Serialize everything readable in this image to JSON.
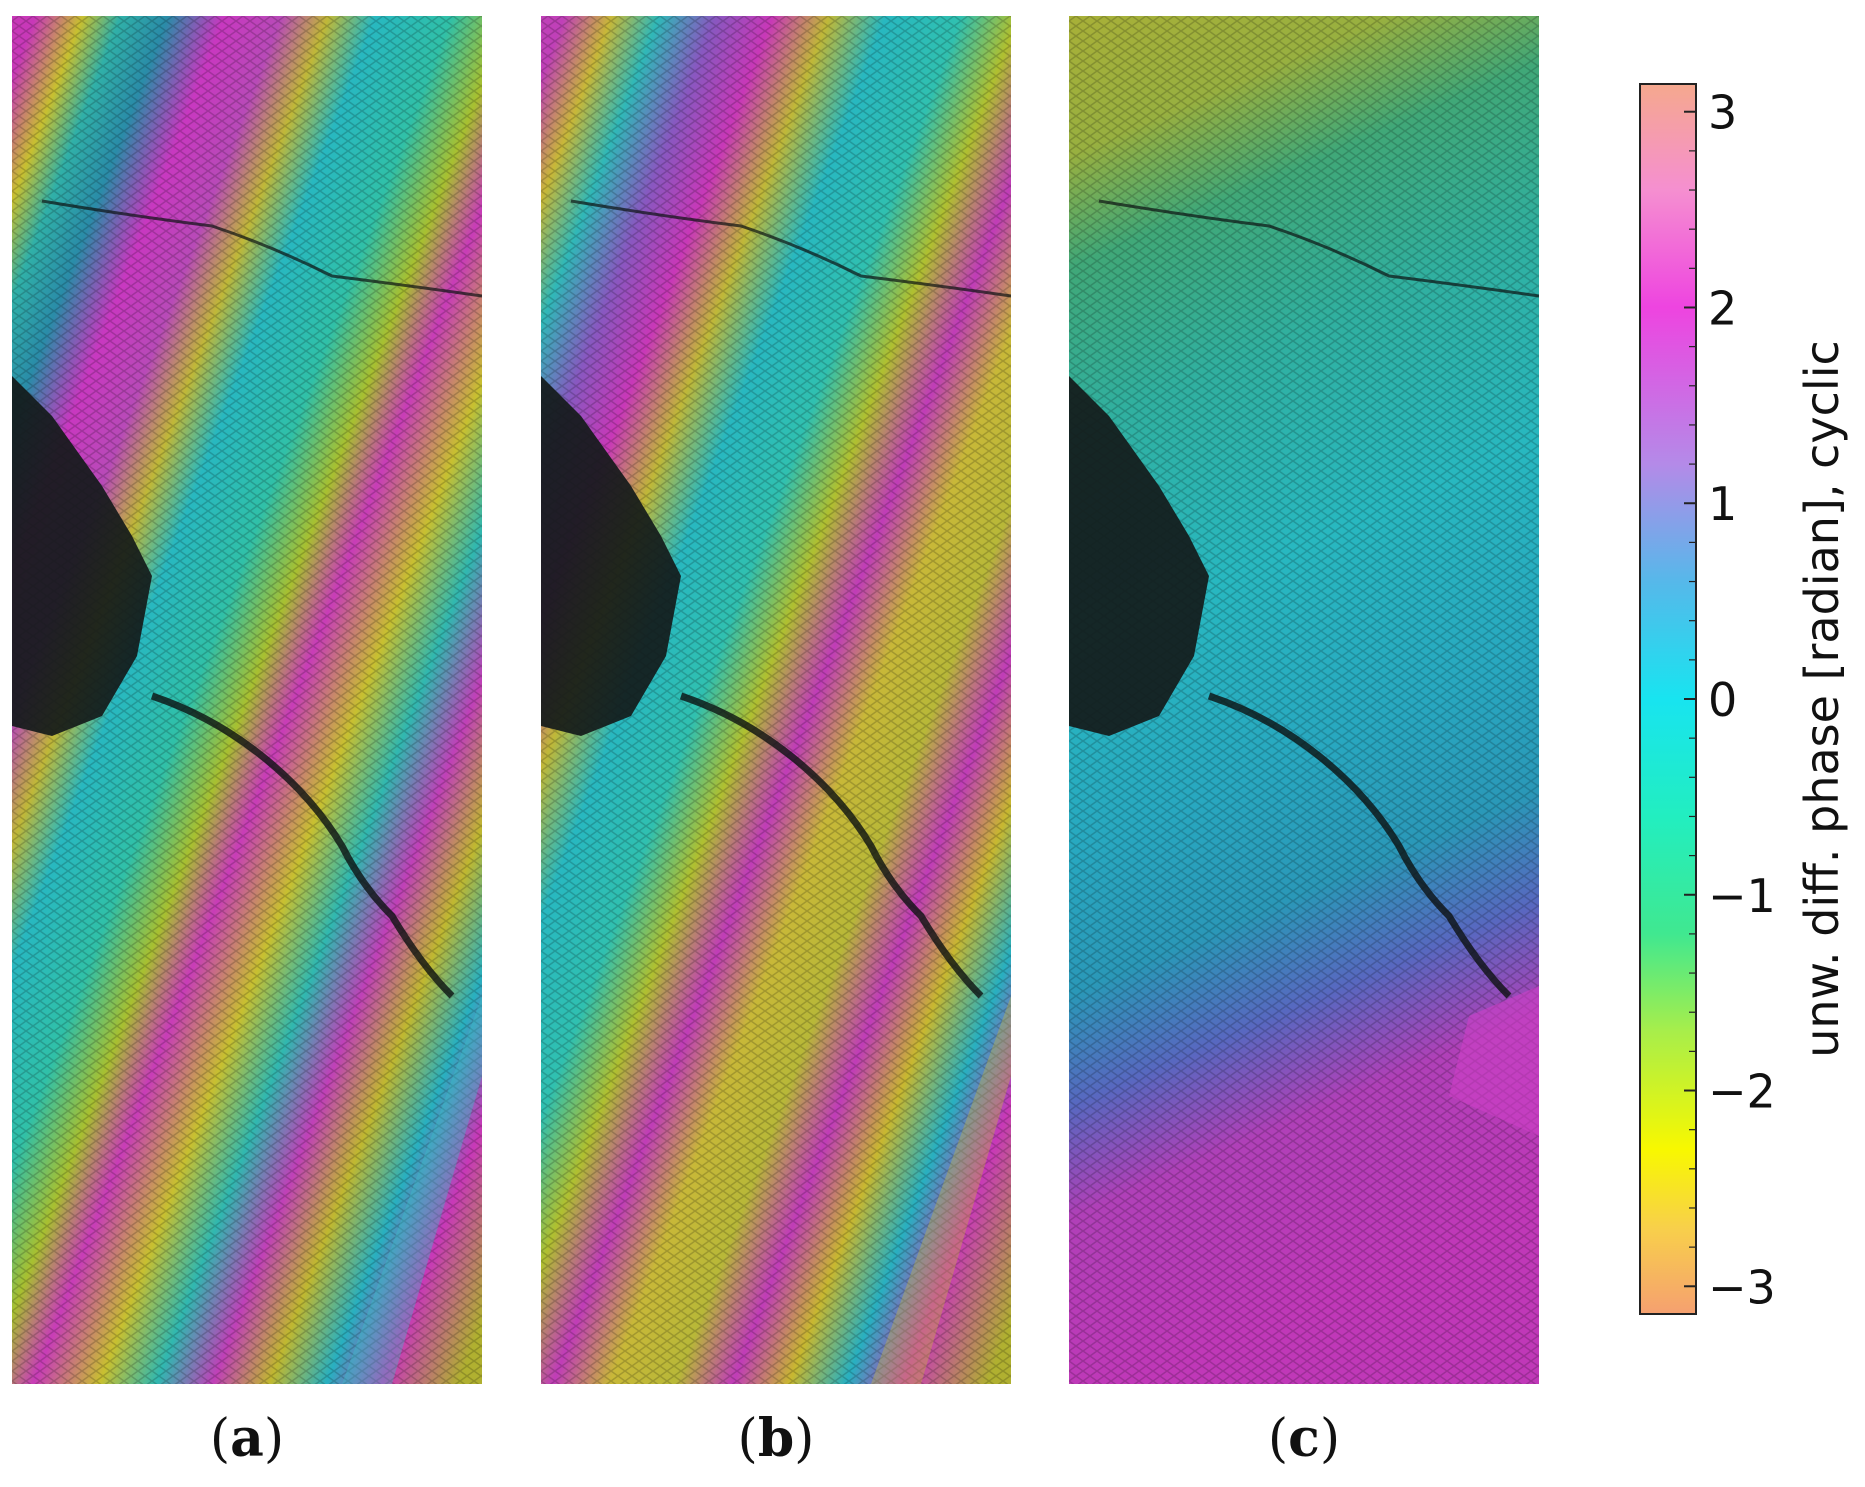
{
  "panels": [
    {
      "id": "a",
      "label_open": "(",
      "label_letter": "a",
      "label_close": ")"
    },
    {
      "id": "b",
      "label_open": "(",
      "label_letter": "b",
      "label_close": ")"
    },
    {
      "id": "c",
      "label_open": "(",
      "label_letter": "c",
      "label_close": ")"
    }
  ],
  "colorbar": {
    "label": "unw. diff. phase [radian], cyclic",
    "range": [
      -3.14159,
      3.14159
    ],
    "ticks": [
      {
        "value": 3,
        "text": "3"
      },
      {
        "value": 2,
        "text": "2"
      },
      {
        "value": 1,
        "text": "1"
      },
      {
        "value": 0,
        "text": "0"
      },
      {
        "value": -1,
        "text": "−1"
      },
      {
        "value": -2,
        "text": "−2"
      },
      {
        "value": -3,
        "text": "−3"
      }
    ],
    "colormap": "cyclic",
    "stops": [
      {
        "value": 3.14159,
        "color": "#f5a88e"
      },
      {
        "value": 2.6,
        "color": "#f58fd0"
      },
      {
        "value": 2.0,
        "color": "#ee44e0"
      },
      {
        "value": 1.2,
        "color": "#b48ae8"
      },
      {
        "value": 0.6,
        "color": "#56b8ea"
      },
      {
        "value": 0.0,
        "color": "#18e4f0"
      },
      {
        "value": -0.6,
        "color": "#22eec0"
      },
      {
        "value": -1.2,
        "color": "#40e890"
      },
      {
        "value": -1.7,
        "color": "#a8ee4a"
      },
      {
        "value": -2.3,
        "color": "#f8f800"
      },
      {
        "value": -2.7,
        "color": "#f8d04a"
      },
      {
        "value": -3.14159,
        "color": "#f5a070"
      }
    ]
  },
  "palette": {
    "magenta": "#d434c0",
    "cyan": "#1ec8d8",
    "green": "#30c890",
    "yellow": "#c8c830",
    "dark": "#151a1a"
  }
}
